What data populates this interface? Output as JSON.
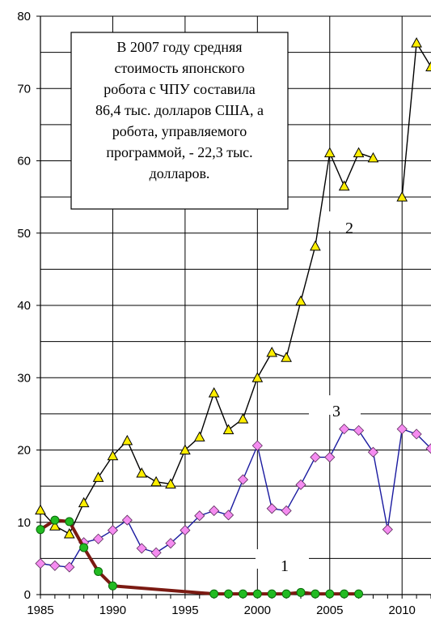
{
  "chart_data": {
    "type": "line",
    "title": "",
    "xlabel": "",
    "ylabel": "",
    "xlim": [
      1985,
      2012
    ],
    "ylim": [
      0,
      80
    ],
    "grid": {
      "horizontal": true,
      "vertical_major": true,
      "vertical_minor": false
    },
    "x_ticks": [
      "1985",
      "1990",
      "1995",
      "2000",
      "2005",
      "2010"
    ],
    "y_ticks": [
      "0",
      "10",
      "20",
      "30",
      "40",
      "50",
      "60",
      "70",
      "80"
    ],
    "annotation": {
      "lines": [
        "В 2007 году средняя",
        "стоимость японского",
        "робота с ЧПУ составила",
        "86,4 тыс. долларов США, а",
        "робота, управляемого",
        "программой,  - 22,3 тыс.",
        "долларов."
      ]
    },
    "series": [
      {
        "name": "1",
        "line_color": "#7B1A12",
        "marker": "circle",
        "marker_color": "#22BB22",
        "segments": [
          [
            [
              1985,
              9.0
            ],
            [
              1986,
              10.3
            ],
            [
              1987,
              10.1
            ],
            [
              1988,
              6.5
            ],
            [
              1989,
              3.2
            ],
            [
              1990,
              1.2
            ],
            [
              1997,
              0.1
            ],
            [
              1998,
              0.1
            ],
            [
              1999,
              0.1
            ],
            [
              2000,
              0.1
            ],
            [
              2001,
              0.1
            ],
            [
              2002,
              0.1
            ],
            [
              2003,
              0.3
            ],
            [
              2004,
              0.1
            ],
            [
              2005,
              0.1
            ],
            [
              2006,
              0.1
            ],
            [
              2007,
              0.1
            ]
          ]
        ]
      },
      {
        "name": "2",
        "line_color": "#000000",
        "marker": "triangle",
        "marker_color": "#FFEE00",
        "segments": [
          [
            [
              1985,
              11.7
            ],
            [
              1986,
              9.5
            ],
            [
              1987,
              8.4
            ],
            [
              1988,
              12.7
            ],
            [
              1989,
              16.2
            ],
            [
              1990,
              19.2
            ],
            [
              1991,
              21.3
            ],
            [
              1992,
              16.8
            ],
            [
              1993,
              15.6
            ],
            [
              1994,
              15.3
            ],
            [
              1995,
              20.0
            ],
            [
              1996,
              21.8
            ],
            [
              1997,
              27.9
            ],
            [
              1998,
              22.8
            ],
            [
              1999,
              24.3
            ],
            [
              2000,
              30.0
            ],
            [
              2001,
              33.5
            ],
            [
              2002,
              32.8
            ],
            [
              2003,
              40.6
            ],
            [
              2004,
              48.2
            ],
            [
              2005,
              61.1
            ],
            [
              2006,
              56.5
            ],
            [
              2007,
              61.1
            ],
            [
              2008,
              60.4
            ]
          ],
          [
            [
              2010,
              55.0
            ],
            [
              2011,
              76.3
            ],
            [
              2012,
              73.0
            ]
          ]
        ]
      },
      {
        "name": "3",
        "line_color": "#1A1AA0",
        "marker": "diamond",
        "marker_color": "#F58CF0",
        "segments": [
          [
            [
              1985,
              4.3
            ],
            [
              1986,
              4.0
            ],
            [
              1987,
              3.8
            ],
            [
              1988,
              7.2
            ],
            [
              1989,
              7.7
            ],
            [
              1990,
              8.9
            ],
            [
              1991,
              10.3
            ],
            [
              1992,
              6.4
            ],
            [
              1993,
              5.8
            ],
            [
              1994,
              7.1
            ],
            [
              1995,
              8.9
            ],
            [
              1996,
              10.9
            ],
            [
              1997,
              11.6
            ],
            [
              1998,
              11.0
            ],
            [
              1999,
              15.9
            ],
            [
              2000,
              20.6
            ],
            [
              2001,
              11.9
            ],
            [
              2002,
              11.6
            ],
            [
              2003,
              15.2
            ],
            [
              2004,
              19.0
            ],
            [
              2005,
              19.0
            ],
            [
              2006,
              22.9
            ],
            [
              2007,
              22.7
            ],
            [
              2008,
              19.7
            ],
            [
              2009,
              9.0
            ],
            [
              2010,
              22.9
            ],
            [
              2011,
              22.2
            ],
            [
              2012,
              20.2
            ]
          ]
        ]
      }
    ]
  }
}
